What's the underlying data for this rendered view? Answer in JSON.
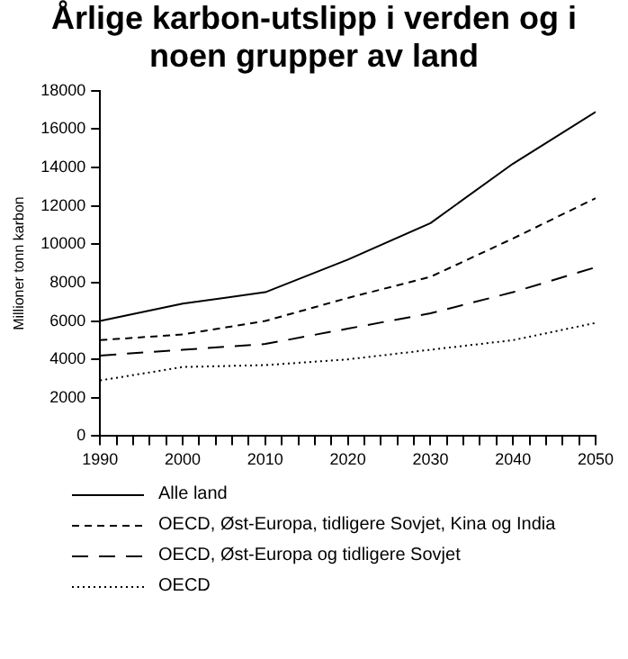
{
  "chart_data": {
    "type": "line",
    "title": "Årlige karbon-utslipp i verden og i noen grupper av land",
    "ylabel": "Millioner tonn karbon",
    "x": [
      1990,
      2000,
      2010,
      2020,
      2030,
      2040,
      2050
    ],
    "series": [
      {
        "name": "Alle land",
        "color": "#000000",
        "line_style": "solid",
        "values": [
          6000,
          6900,
          7500,
          9200,
          11100,
          14200,
          16900
        ]
      },
      {
        "name": "OECD, Øst-Europa, tidligere Sovjet, Kina og India",
        "color": "#000000",
        "line_style": "dashed",
        "values": [
          5000,
          5300,
          6000,
          7200,
          8300,
          10300,
          12400
        ]
      },
      {
        "name": "OECD, Øst-Europa og tidligere Sovjet",
        "color": "#000000",
        "line_style": "dashed",
        "values": [
          4200,
          4500,
          4800,
          5600,
          6400,
          7500,
          8800
        ]
      },
      {
        "name": "OECD",
        "color": "#000000",
        "line_style": "dotted",
        "values": [
          2900,
          3600,
          3700,
          4000,
          4500,
          5000,
          5900
        ]
      }
    ],
    "xlim": [
      1990,
      2050
    ],
    "xticks": [
      1990,
      {
        "value": 1992,
        "label": null
      },
      {
        "value": 1994,
        "label": null
      },
      {
        "value": 1996,
        "label": null
      },
      {
        "value": 1998,
        "label": null
      },
      2000,
      {
        "value": 2002,
        "label": null
      },
      {
        "value": 2004,
        "label": null
      },
      {
        "value": 2006,
        "label": null
      },
      {
        "value": 2008,
        "label": null
      },
      2010,
      {
        "value": 2012,
        "label": null
      },
      {
        "value": 2014,
        "label": null
      },
      {
        "value": 2016,
        "label": null
      },
      {
        "value": 2018,
        "label": null
      },
      2020,
      {
        "value": 2022,
        "label": null
      },
      {
        "value": 2024,
        "label": null
      },
      {
        "value": 2026,
        "label": null
      },
      {
        "value": 2028,
        "label": null
      },
      2030,
      {
        "value": 2032,
        "label": null
      },
      {
        "value": 2034,
        "label": null
      },
      {
        "value": 2036,
        "label": null
      },
      {
        "value": 2038,
        "label": null
      },
      2040,
      {
        "value": 2042,
        "label": null
      },
      {
        "value": 2044,
        "label": null
      },
      {
        "value": 2046,
        "label": null
      },
      {
        "value": 2048,
        "label": null
      },
      2050
    ],
    "ylim": [
      0,
      18000
    ],
    "yticks": [
      0,
      2000,
      4000,
      6000,
      8000,
      10000,
      12000,
      14000,
      16000,
      18000
    ],
    "grid": false,
    "legend": "bottom",
    "marker": "none"
  }
}
